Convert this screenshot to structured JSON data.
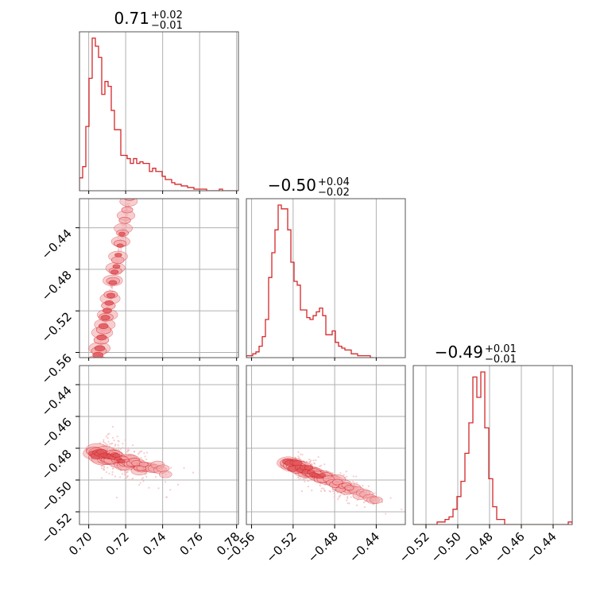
{
  "chart_data": {
    "type": "corner",
    "color": "#d62728",
    "fill_light": "#f2a7ab",
    "fill_dark": "#e05a60",
    "parameters": [
      {
        "title": {
          "median": "0.71",
          "plus": "+0.02",
          "minus": "−0.01"
        },
        "range": [
          0.695,
          0.781
        ],
        "ticks": [
          0.7,
          0.72,
          0.74,
          0.76,
          0.78
        ],
        "tick_labels": [
          "0.70",
          "0.72",
          "0.74",
          "0.76",
          "0.78"
        ]
      },
      {
        "title": {
          "median": "−0.50",
          "plus": "+0.04",
          "minus": "−0.02"
        },
        "range": [
          -0.565,
          -0.412
        ],
        "ticks": [
          -0.56,
          -0.52,
          -0.48,
          -0.44
        ],
        "tick_labels": [
          "−0.56",
          "−0.52",
          "−0.48",
          "−0.44"
        ]
      },
      {
        "title": {
          "median": "−0.49",
          "plus": "+0.01",
          "minus": "−0.01"
        },
        "range": [
          -0.528,
          -0.428
        ],
        "ticks": [
          -0.52,
          -0.5,
          -0.48,
          -0.46,
          -0.44
        ],
        "tick_labels": [
          "−0.52",
          "−0.50",
          "−0.48",
          "−0.46",
          "−0.44"
        ]
      }
    ],
    "histograms": [
      {
        "edges_start": 0.695,
        "bin_width": 0.00172,
        "counts": [
          8,
          15,
          40,
          70,
          95,
          90,
          83,
          60,
          68,
          65,
          50,
          38,
          38,
          22,
          22,
          20,
          17,
          20,
          17,
          18,
          17,
          17,
          12,
          14,
          12,
          12,
          9,
          7,
          7,
          5,
          4,
          4,
          3,
          3,
          2,
          2,
          1,
          1,
          1,
          1,
          0,
          0,
          0,
          0,
          1,
          0,
          0,
          0,
          0,
          0
        ]
      },
      {
        "edges_start": -0.565,
        "bin_width": 0.00306,
        "counts": [
          1,
          1,
          2,
          3,
          6,
          11,
          20,
          42,
          55,
          67,
          80,
          78,
          78,
          67,
          50,
          40,
          38,
          25,
          25,
          21,
          20,
          22,
          24,
          26,
          22,
          12,
          12,
          14,
          8,
          6,
          5,
          4,
          4,
          2,
          2,
          1,
          1,
          1,
          1,
          0
        ]
      },
      {
        "edges_start": -0.528,
        "bin_width": 0.0025,
        "counts": [
          0,
          0,
          0,
          0,
          0,
          0,
          1,
          1,
          2,
          3,
          6,
          11,
          17,
          28,
          40,
          58,
          50,
          60,
          38,
          18,
          7,
          2,
          2,
          0,
          0,
          0,
          0,
          0,
          0,
          0,
          0,
          0,
          0,
          0,
          0,
          0,
          0,
          0,
          0,
          1
        ]
      }
    ],
    "scatter_pairs": [
      {
        "x_param": 0,
        "y_param": 1,
        "slope": 9.0,
        "intercept": -6.91,
        "x_center": 0.712,
        "x_sd": 0.01,
        "noise": 0.006
      },
      {
        "x_param": 0,
        "y_param": 2,
        "slope": -0.32,
        "intercept": -0.258,
        "x_center": 0.712,
        "x_sd": 0.01,
        "noise": 0.006
      },
      {
        "x_param": 1,
        "y_param": 2,
        "slope": -0.28,
        "intercept": -0.636,
        "x_center": -0.505,
        "x_sd": 0.022,
        "noise": 0.005
      }
    ]
  }
}
